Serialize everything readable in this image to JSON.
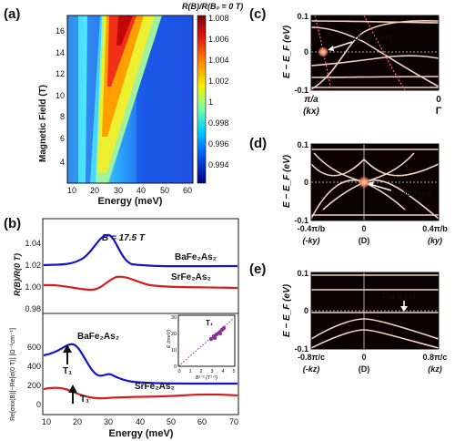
{
  "colors": {
    "baseline_blue": "#1414c8",
    "srfe_red": "#d41e1e",
    "inset_purple": "#8a2f9a",
    "arrow_white": "#ffffff"
  },
  "panel_a": {
    "label": "(a)",
    "colorbar_title": "R(B)/R(B₀ = 0 T)",
    "colorbar_ticks": [
      "1.008",
      "1.006",
      "1.004",
      "1.002",
      "1",
      "0.998",
      "0.996",
      "0.994"
    ],
    "ylabel": "Magnetic Field (T)",
    "xlabel": "Energy (meV)",
    "yticks": [
      "16",
      "14",
      "12",
      "10",
      "8",
      "6",
      "4"
    ],
    "xticks": [
      "10",
      "20",
      "30",
      "40",
      "50",
      "60"
    ]
  },
  "panel_b": {
    "label": "(b)",
    "field_label": "B = 17.5 T",
    "top_ylabel": "R(B)/R(0 T)",
    "top_yticks": [
      "1.04",
      "1.02",
      "1.00",
      "0.98"
    ],
    "bottom_ylabel": "Re[σxx(B)]−Re[σ(0 T)] [Ω⁻¹cm⁻¹]",
    "bottom_yticks": [
      "600",
      "400",
      "200",
      "0"
    ],
    "xlabel": "Energy (meV)",
    "xticks": [
      "10",
      "20",
      "30",
      "40",
      "50",
      "60",
      "70"
    ],
    "ba_label": "BaFe₂As₂",
    "sr_label": "SrFe₂As₂",
    "t1": "T₁",
    "inset": {
      "ylabel": "E (meV)",
      "xlabel": "B¹ᐟ² (T¹ᐟ²)",
      "yticks": [
        "30",
        "20",
        "10",
        "0"
      ],
      "xticks": [
        "0",
        "1",
        "2",
        "3",
        "4",
        "5"
      ],
      "legend": "T₁"
    }
  },
  "panel_c": {
    "label": "(c)",
    "ylabel": "E − E_F (eV)",
    "yticks": [
      "0.1",
      "0",
      "-0.1"
    ],
    "x_left": "π/a",
    "x_left_sub": "(kx)",
    "x_right": "0",
    "x_right_sub": "Γ",
    "annotation": "Dirac Point"
  },
  "panel_d": {
    "label": "(d)",
    "ylabel": "E − E_F (eV)",
    "yticks": [
      "0.1",
      "0",
      "-0.1"
    ],
    "x_left": "-0.4π/b",
    "x_left_sub": "(-ky)",
    "x_mid": "0",
    "x_mid_sub": "(D)",
    "x_right": "0.4π/b",
    "x_right_sub": "(ky)",
    "annotation": "Dirac Point"
  },
  "panel_e": {
    "label": "(e)",
    "ylabel": "E − E_F (eV)",
    "yticks": [
      "0.1",
      "0",
      "-0.1"
    ],
    "x_left": "-0.8π/c",
    "x_left_sub": "(-kz)",
    "x_mid": "0",
    "x_mid_sub": "(D)",
    "x_right": "0.8π/c",
    "x_right_sub": "(kz)",
    "annotation": "Flat Band"
  }
}
